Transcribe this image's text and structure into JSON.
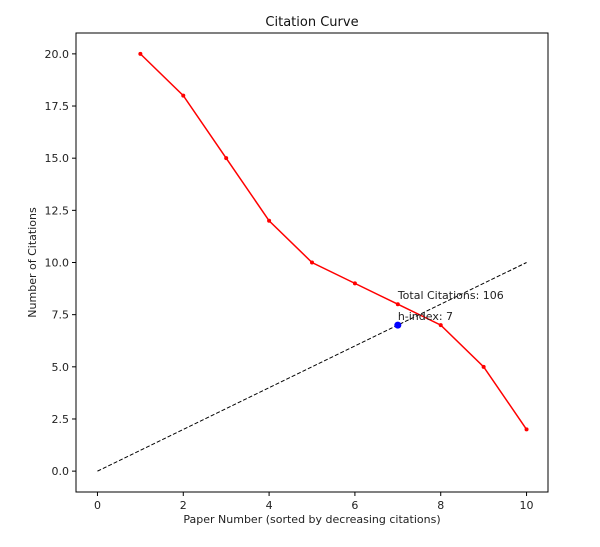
{
  "chart_data": {
    "type": "line",
    "title": "Citation Curve",
    "xlabel": "Paper Number (sorted by decreasing citations)",
    "ylabel": "Number of Citations",
    "xlim": [
      -0.5,
      10.5
    ],
    "ylim": [
      -1.0,
      21.0
    ],
    "x_ticks": [
      0,
      2,
      4,
      6,
      8,
      10
    ],
    "x_tick_labels": [
      "0",
      "2",
      "4",
      "6",
      "8",
      "10"
    ],
    "y_ticks": [
      0.0,
      2.5,
      5.0,
      7.5,
      10.0,
      12.5,
      15.0,
      17.5,
      20.0
    ],
    "y_tick_labels": [
      "0.0",
      "2.5",
      "5.0",
      "7.5",
      "10.0",
      "12.5",
      "15.0",
      "17.5",
      "20.0"
    ],
    "grid": false,
    "series": [
      {
        "kind": "citations",
        "color": "#ff0000",
        "marker": "dot",
        "x": [
          1,
          2,
          3,
          4,
          5,
          6,
          7,
          8,
          9,
          10
        ],
        "values": [
          20,
          18,
          15,
          12,
          10,
          9,
          8,
          7,
          5,
          2
        ]
      },
      {
        "kind": "reference-line",
        "color": "#000000",
        "linestyle": "dashed",
        "x": [
          0,
          10
        ],
        "values": [
          0,
          10
        ]
      }
    ],
    "highlight_point": {
      "x": 7,
      "y": 7,
      "color": "#0000ff"
    },
    "annotations": [
      {
        "text": "Total Citations: 106",
        "x": 7,
        "y": 8.0
      },
      {
        "text": "h-index: 7",
        "x": 7,
        "y": 7.0
      }
    ]
  }
}
